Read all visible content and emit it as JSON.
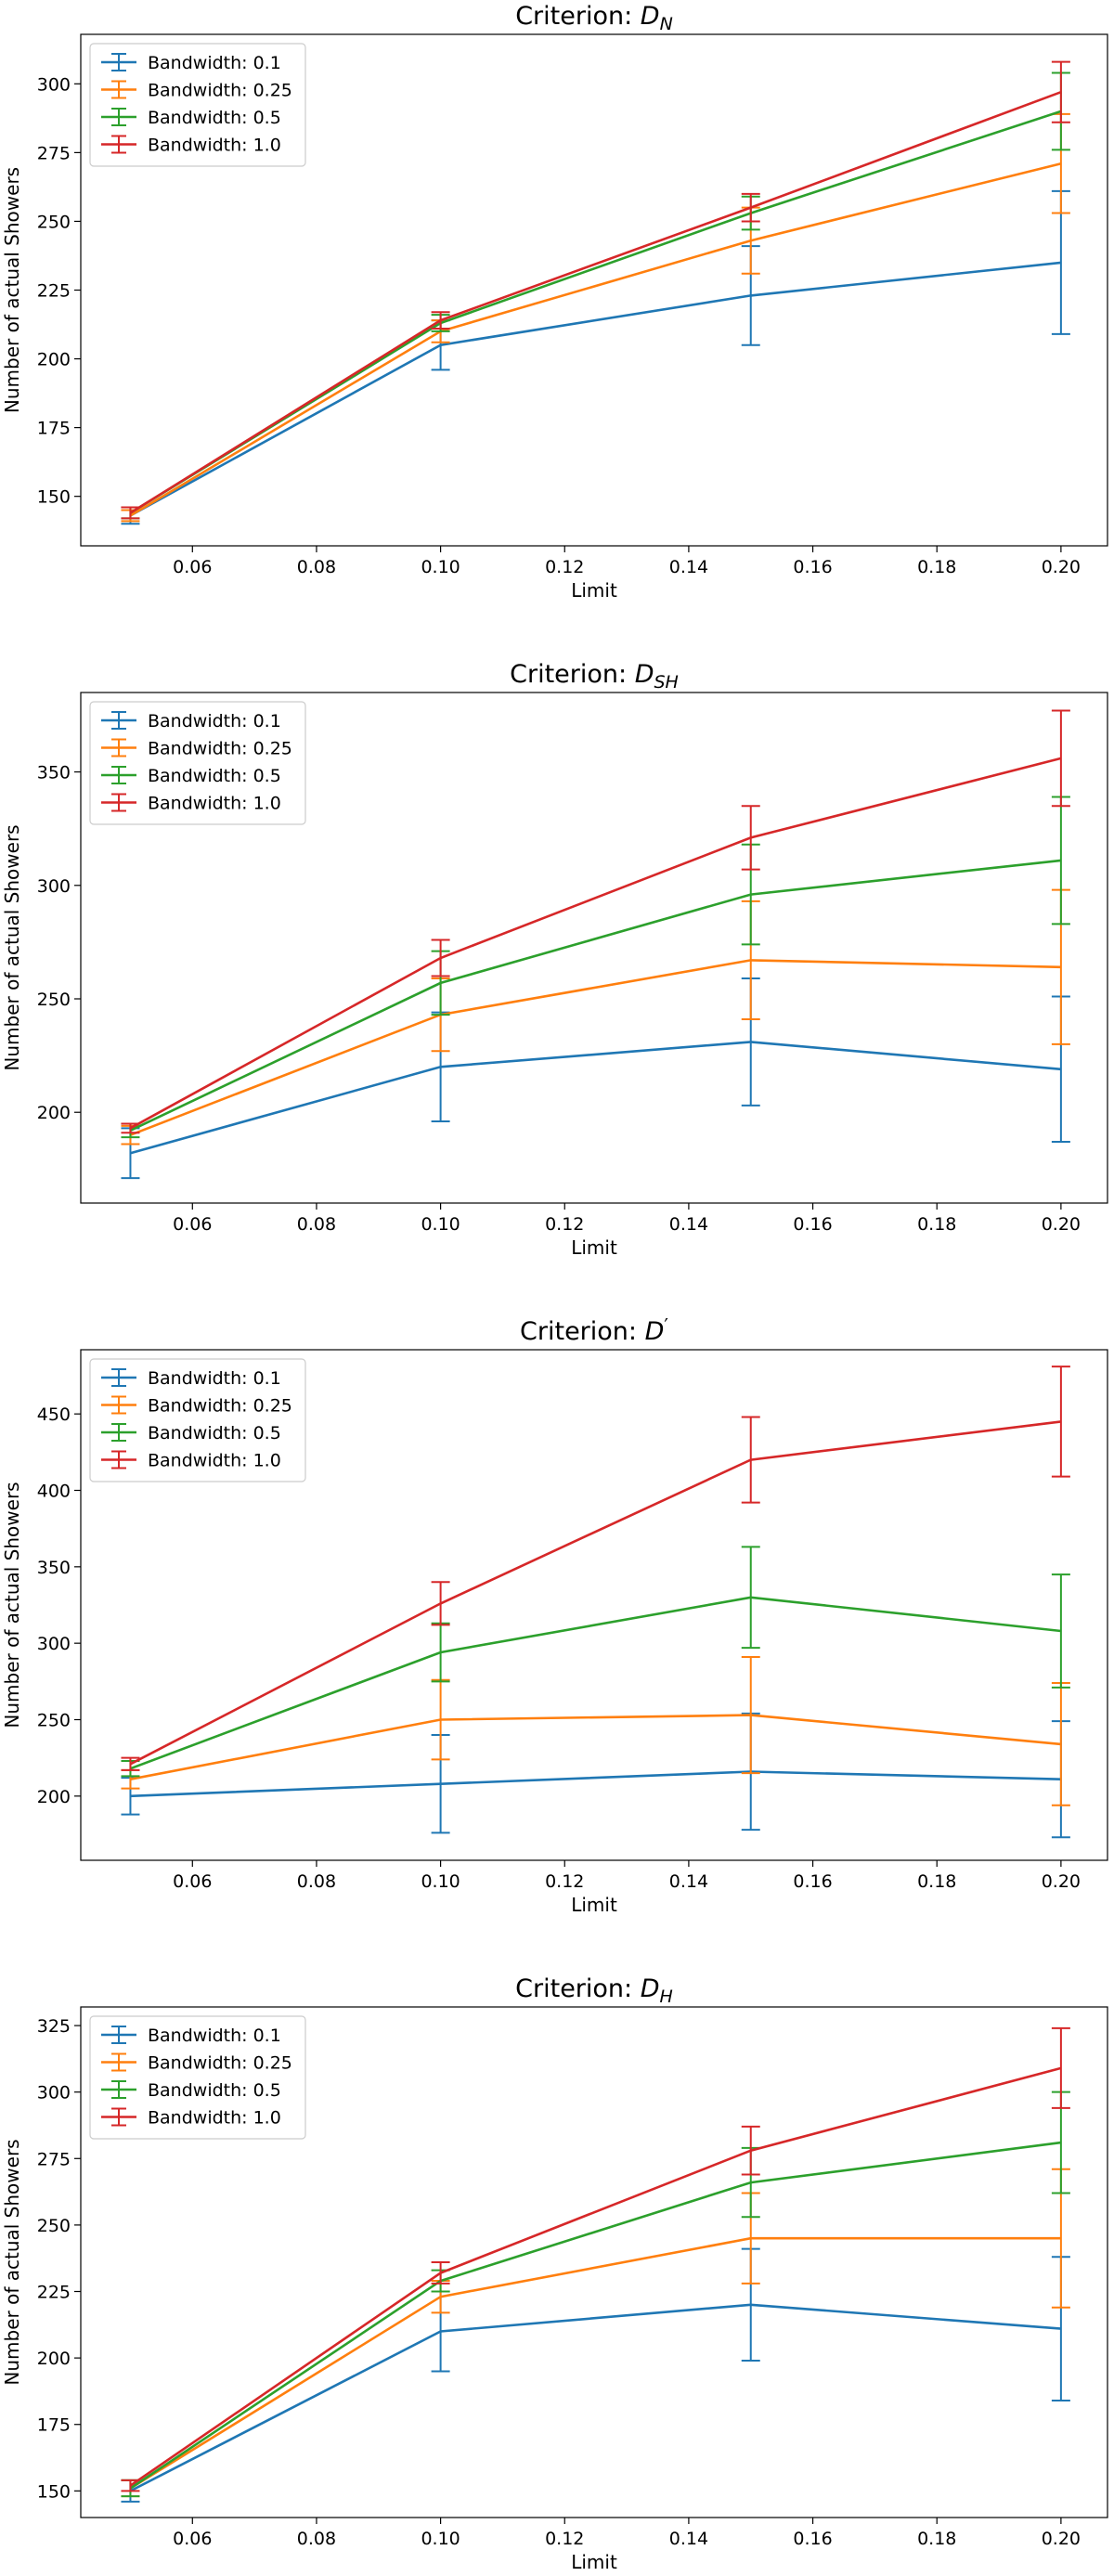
{
  "chart_data": [
    {
      "type": "line",
      "title_prefix": "Criterion: ",
      "title_base": "D",
      "title_sub": "N",
      "xlabel": "Limit",
      "ylabel": "Number of actual Showers",
      "xlim": [
        0.042,
        0.2075
      ],
      "ylim": [
        132,
        318
      ],
      "xticks": [
        "0.06",
        "0.08",
        "0.10",
        "0.12",
        "0.14",
        "0.16",
        "0.18",
        "0.20"
      ],
      "yticks": [
        "150",
        "175",
        "200",
        "225",
        "250",
        "275",
        "300"
      ],
      "legend_position": "upper-left",
      "x": [
        0.05,
        0.1,
        0.15,
        0.2
      ],
      "series": [
        {
          "name": "Bandwidth: 0.1",
          "color": "#1f77b4",
          "values": [
            143,
            205,
            223,
            235
          ],
          "errors": [
            3,
            9,
            18,
            26
          ]
        },
        {
          "name": "Bandwidth: 0.25",
          "color": "#ff7f0e",
          "values": [
            143,
            210,
            243,
            271
          ],
          "errors": [
            2,
            4,
            12,
            18
          ]
        },
        {
          "name": "Bandwidth: 0.5",
          "color": "#2ca02c",
          "values": [
            144,
            213,
            253,
            290
          ],
          "errors": [
            2,
            3,
            6,
            14
          ]
        },
        {
          "name": "Bandwidth: 1.0",
          "color": "#d62728",
          "values": [
            144,
            214,
            255,
            297
          ],
          "errors": [
            2,
            3,
            5,
            11
          ]
        }
      ]
    },
    {
      "type": "line",
      "title_prefix": "Criterion: ",
      "title_base": "D",
      "title_sub": "SH",
      "xlabel": "Limit",
      "ylabel": "Number of actual Showers",
      "xlim": [
        0.042,
        0.2075
      ],
      "ylim": [
        160,
        385
      ],
      "xticks": [
        "0.06",
        "0.08",
        "0.10",
        "0.12",
        "0.14",
        "0.16",
        "0.18",
        "0.20"
      ],
      "yticks": [
        "200",
        "250",
        "300",
        "350"
      ],
      "legend_position": "upper-left",
      "x": [
        0.05,
        0.1,
        0.15,
        0.2
      ],
      "series": [
        {
          "name": "Bandwidth: 0.1",
          "color": "#1f77b4",
          "values": [
            182,
            220,
            231,
            219
          ],
          "errors": [
            11,
            24,
            28,
            32
          ]
        },
        {
          "name": "Bandwidth: 0.25",
          "color": "#ff7f0e",
          "values": [
            190,
            243,
            267,
            264
          ],
          "errors": [
            4,
            16,
            26,
            34
          ]
        },
        {
          "name": "Bandwidth: 0.5",
          "color": "#2ca02c",
          "values": [
            192,
            257,
            296,
            311
          ],
          "errors": [
            3,
            14,
            22,
            28
          ]
        },
        {
          "name": "Bandwidth: 1.0",
          "color": "#d62728",
          "values": [
            193,
            268,
            321,
            356
          ],
          "errors": [
            2,
            8,
            14,
            21
          ]
        }
      ]
    },
    {
      "type": "line",
      "title_prefix": "Criterion: ",
      "title_base": "D",
      "title_sub": "",
      "title_prime": "′",
      "xlabel": "Limit",
      "ylabel": "Number of actual Showers",
      "xlim": [
        0.042,
        0.2075
      ],
      "ylim": [
        158,
        492
      ],
      "xticks": [
        "0.06",
        "0.08",
        "0.10",
        "0.12",
        "0.14",
        "0.16",
        "0.18",
        "0.20"
      ],
      "yticks": [
        "200",
        "250",
        "300",
        "350",
        "400",
        "450"
      ],
      "legend_position": "upper-left",
      "x": [
        0.05,
        0.1,
        0.15,
        0.2
      ],
      "series": [
        {
          "name": "Bandwidth: 0.1",
          "color": "#1f77b4",
          "values": [
            200,
            208,
            216,
            211
          ],
          "errors": [
            12,
            32,
            38,
            38
          ]
        },
        {
          "name": "Bandwidth: 0.25",
          "color": "#ff7f0e",
          "values": [
            211,
            250,
            253,
            234
          ],
          "errors": [
            6,
            26,
            38,
            40
          ]
        },
        {
          "name": "Bandwidth: 0.5",
          "color": "#2ca02c",
          "values": [
            218,
            294,
            330,
            308
          ],
          "errors": [
            5,
            19,
            33,
            37
          ]
        },
        {
          "name": "Bandwidth: 1.0",
          "color": "#d62728",
          "values": [
            221,
            326,
            420,
            445
          ],
          "errors": [
            4,
            14,
            28,
            36
          ]
        }
      ]
    },
    {
      "type": "line",
      "title_prefix": "Criterion: ",
      "title_base": "D",
      "title_sub": "H",
      "xlabel": "Limit",
      "ylabel": "Number of actual Showers",
      "xlim": [
        0.042,
        0.2075
      ],
      "ylim": [
        140,
        332
      ],
      "xticks": [
        "0.06",
        "0.08",
        "0.10",
        "0.12",
        "0.14",
        "0.16",
        "0.18",
        "0.20"
      ],
      "yticks": [
        "150",
        "175",
        "200",
        "225",
        "250",
        "275",
        "300",
        "325"
      ],
      "legend_position": "upper-left",
      "x": [
        0.05,
        0.1,
        0.15,
        0.2
      ],
      "series": [
        {
          "name": "Bandwidth: 0.1",
          "color": "#1f77b4",
          "values": [
            150,
            210,
            220,
            211
          ],
          "errors": [
            4,
            15,
            21,
            27
          ]
        },
        {
          "name": "Bandwidth: 0.25",
          "color": "#ff7f0e",
          "values": [
            151,
            223,
            245,
            245
          ],
          "errors": [
            3,
            6,
            17,
            26
          ]
        },
        {
          "name": "Bandwidth: 0.5",
          "color": "#2ca02c",
          "values": [
            151,
            229,
            266,
            281
          ],
          "errors": [
            3,
            4,
            13,
            19
          ]
        },
        {
          "name": "Bandwidth: 1.0",
          "color": "#d62728",
          "values": [
            152,
            232,
            278,
            309
          ],
          "errors": [
            2,
            4,
            9,
            15
          ]
        }
      ]
    }
  ]
}
